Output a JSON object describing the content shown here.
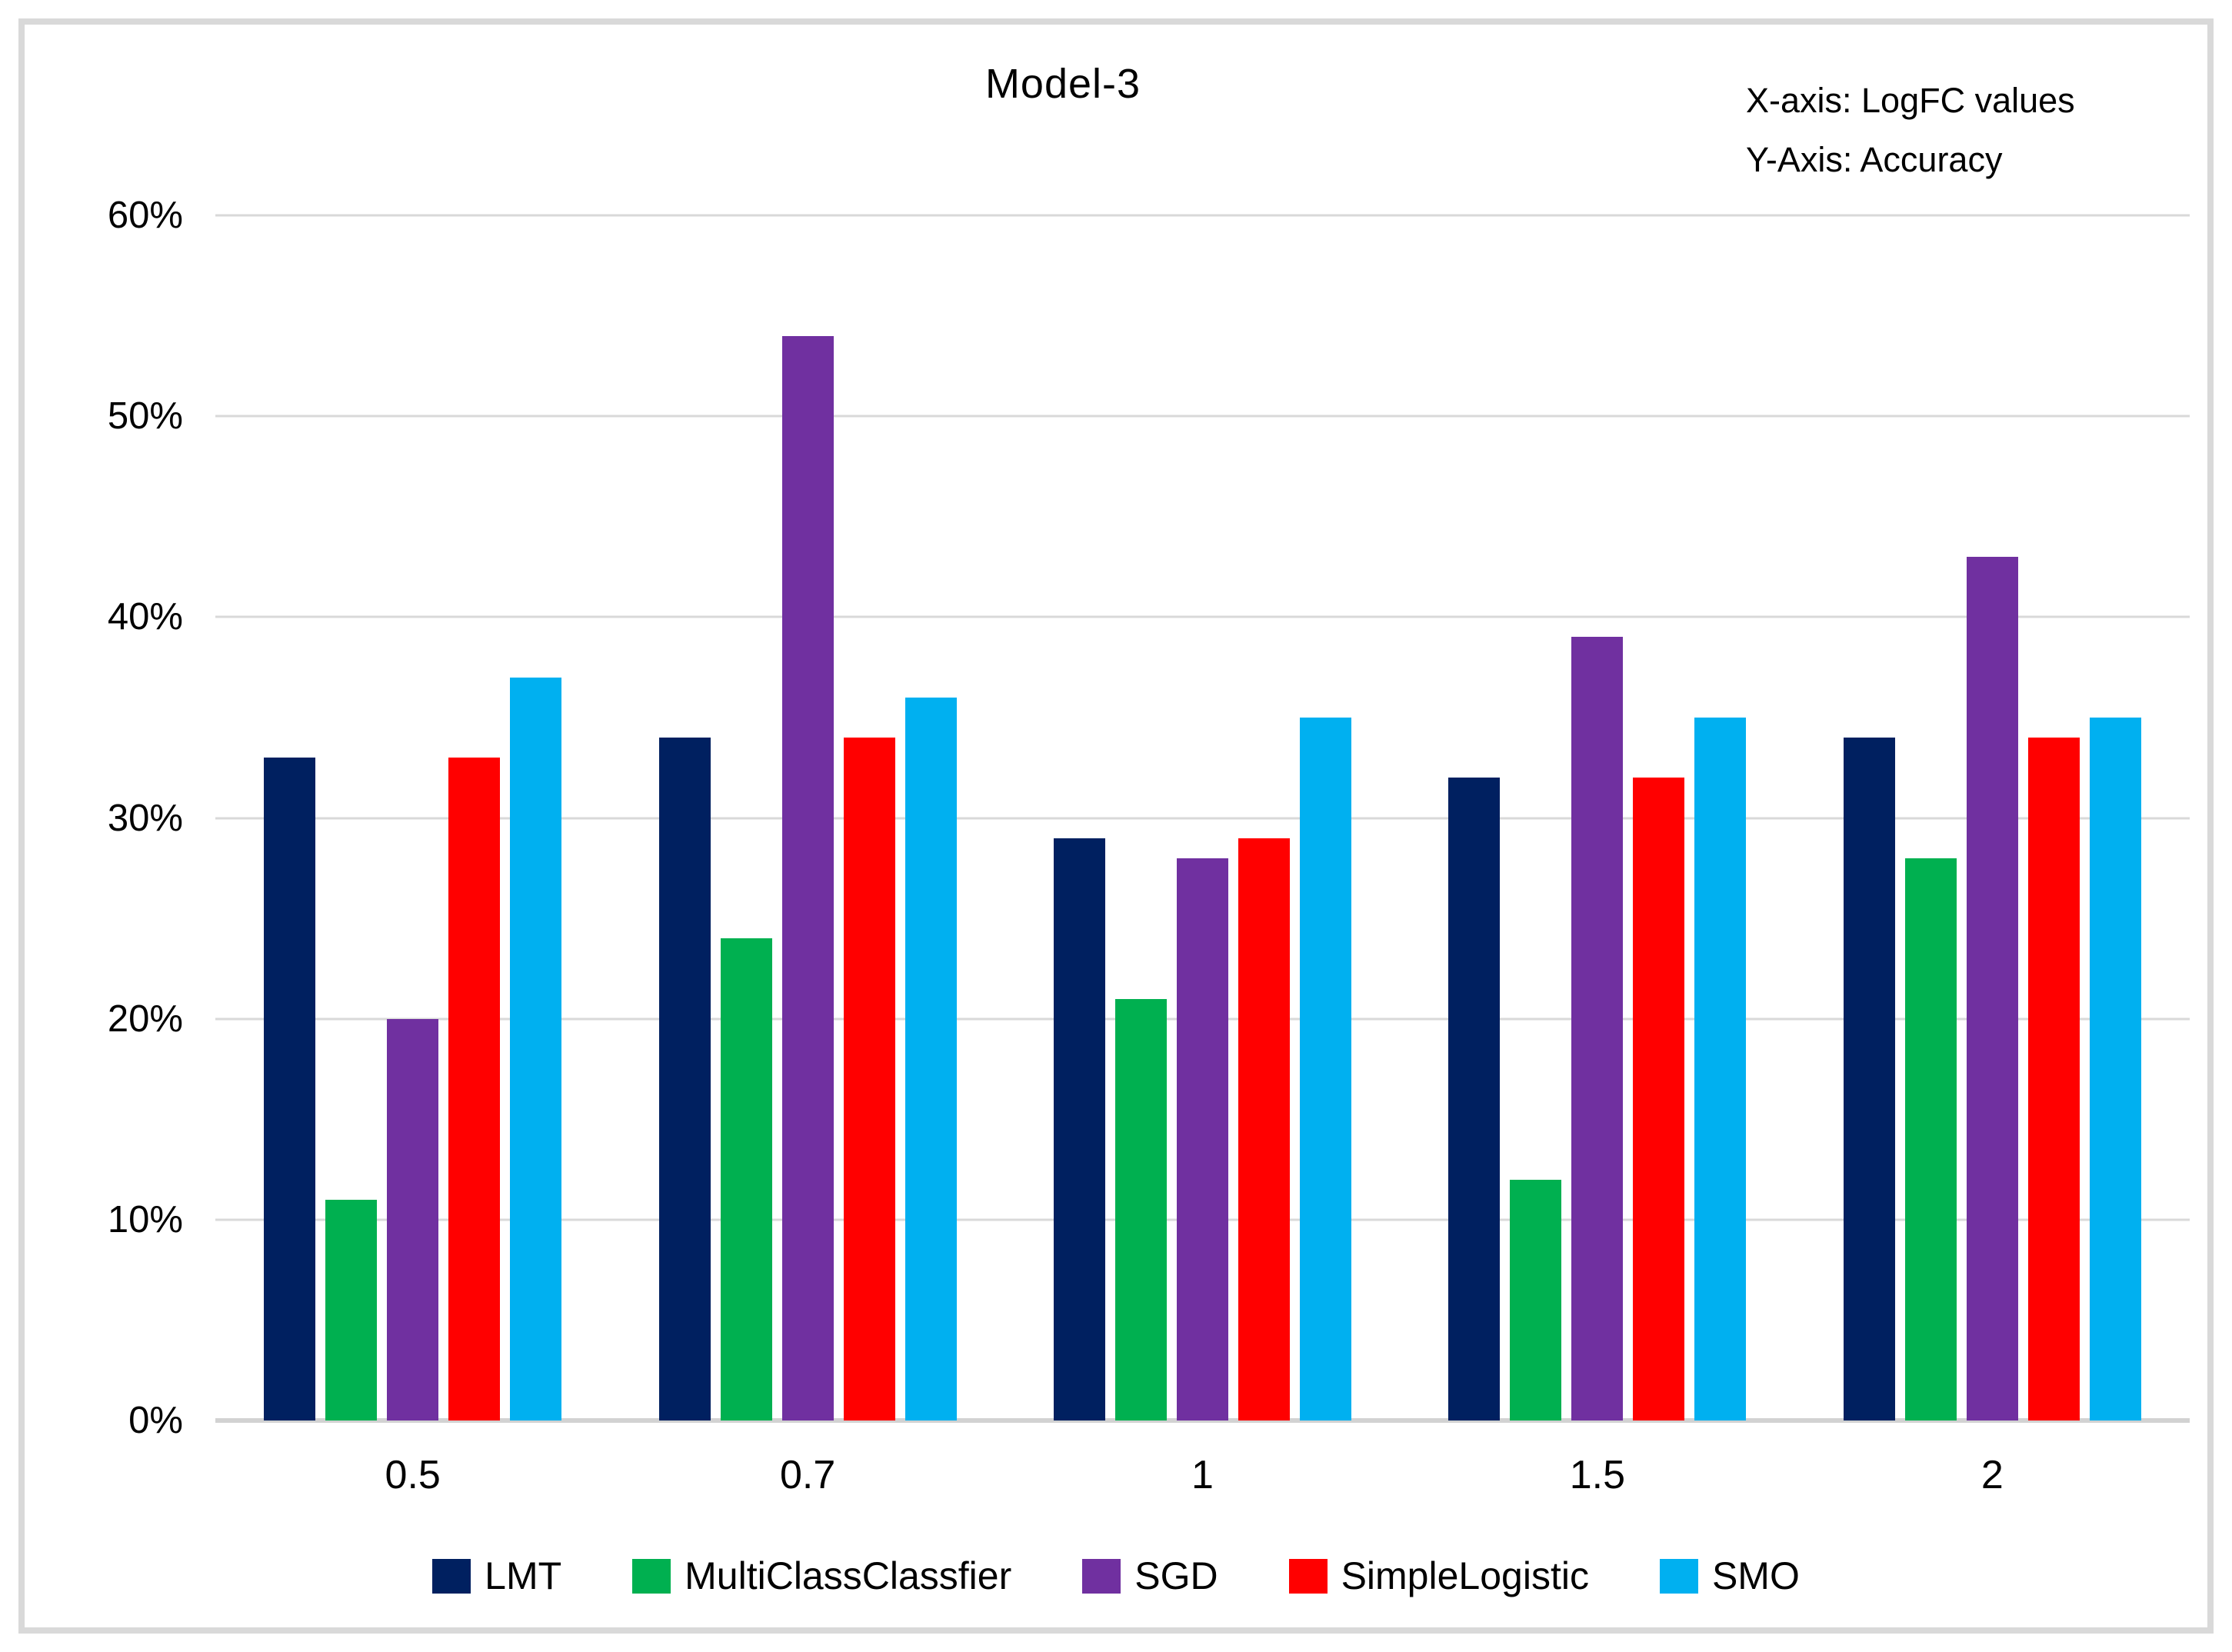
{
  "chart_data": {
    "type": "bar",
    "title": "Model-3",
    "annotation_lines": [
      "X-axis: LogFC values",
      "Y-Axis: Accuracy"
    ],
    "categories": [
      "0.5",
      "0.7",
      "1",
      "1.5",
      "2"
    ],
    "series": [
      {
        "name": "LMT",
        "color": "#002060",
        "values": [
          33,
          34,
          29,
          32,
          34
        ]
      },
      {
        "name": "MultiClassClassfier",
        "color": "#00B050",
        "values": [
          11,
          24,
          21,
          12,
          28
        ]
      },
      {
        "name": "SGD",
        "color": "#7030A0",
        "values": [
          20,
          54,
          28,
          39,
          43
        ]
      },
      {
        "name": "SimpleLogistic",
        "color": "#FF0000",
        "values": [
          33,
          34,
          29,
          32,
          34
        ]
      },
      {
        "name": "SMO",
        "color": "#00B0F0",
        "values": [
          37,
          36,
          35,
          35,
          35
        ]
      }
    ],
    "y_ticks": [
      "0%",
      "10%",
      "20%",
      "30%",
      "40%",
      "50%",
      "60%"
    ],
    "ylim": [
      0,
      60
    ],
    "grid": true,
    "legend_position": "bottom",
    "colors": {
      "gridline": "#D9D9D9",
      "axis_baseline": "#D2D2D2",
      "frame_border": "#D9D9D9",
      "background": "#FFFFFF",
      "text": "#000000"
    }
  }
}
